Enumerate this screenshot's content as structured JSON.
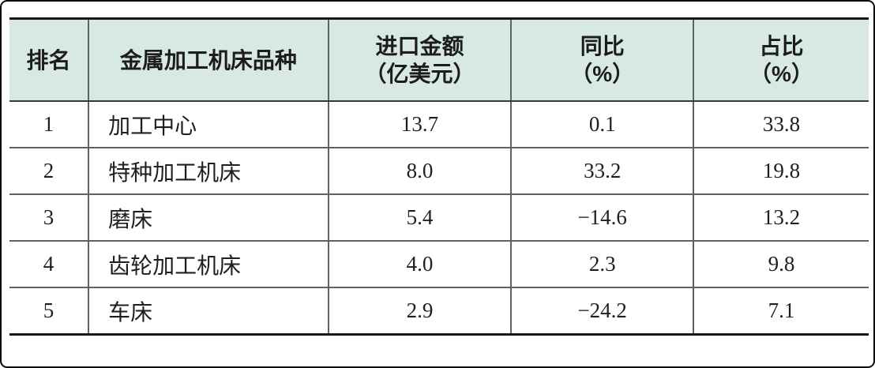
{
  "colors": {
    "header_bg": "#d8e9e5",
    "heavy_rule": "#161616",
    "grid_line": "#5f6360",
    "frame_border": "#0a0a0a",
    "text": "#1f1f1f"
  },
  "chart_data": {
    "type": "table",
    "title": "",
    "columns": [
      {
        "title": "排名",
        "unit": ""
      },
      {
        "title": "金属加工机床品种",
        "unit": ""
      },
      {
        "title": "进口金额",
        "unit": "（亿美元）"
      },
      {
        "title": "同比",
        "unit": "（%）"
      },
      {
        "title": "占比",
        "unit": "（%）"
      }
    ],
    "rows": [
      {
        "rank": "1",
        "category": "加工中心",
        "import_value": "13.7",
        "yoy": "0.1",
        "share": "33.8"
      },
      {
        "rank": "2",
        "category": "特种加工机床",
        "import_value": "8.0",
        "yoy": "33.2",
        "share": "19.8"
      },
      {
        "rank": "3",
        "category": "磨床",
        "import_value": "5.4",
        "yoy": "−14.6",
        "share": "13.2"
      },
      {
        "rank": "4",
        "category": "齿轮加工机床",
        "import_value": "4.0",
        "yoy": "2.3",
        "share": "9.8"
      },
      {
        "rank": "5",
        "category": "车床",
        "import_value": "2.9",
        "yoy": "−24.2",
        "share": "7.1"
      }
    ]
  }
}
